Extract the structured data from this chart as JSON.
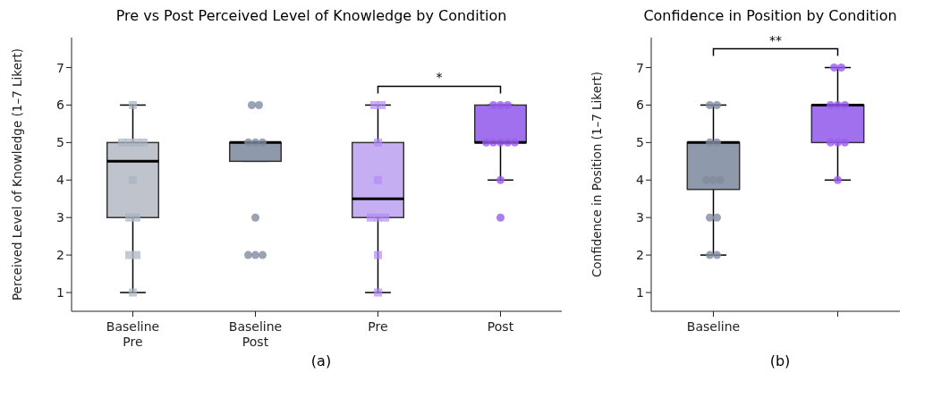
{
  "chart_data": [
    {
      "type": "box",
      "title": "Pre vs Post Perceived Level of Knowledge by Condition",
      "xlabel": "(a)",
      "ylabel": "Perceived Level of Knowledge (1–7 Likert)",
      "categories": [
        "Baseline\nPre",
        "Baseline\nPost",
        "Pre",
        "Post"
      ],
      "ylim": [
        0.5,
        7.8
      ],
      "yticks": [
        1,
        2,
        3,
        4,
        5,
        6,
        7
      ],
      "annotations": [
        "*"
      ],
      "series": [
        {
          "type": "box",
          "colors": [
            "#bfc4cc",
            "#8e9aab",
            "#c6aef2",
            "#a070ee"
          ],
          "boxes": [
            {
              "low": 1,
              "q1": 3,
              "median": 4.5,
              "q3": 5,
              "high": 6
            },
            {
              "low": 4.5,
              "q1": 4.5,
              "median": 5,
              "q3": 5,
              "high": 5
            },
            {
              "low": 1,
              "q1": 3,
              "median": 3.5,
              "q3": 5,
              "high": 6
            },
            {
              "low": 4,
              "q1": 5,
              "median": 5,
              "q3": 6,
              "high": 6
            }
          ]
        },
        {
          "type": "scatter",
          "marker": "square",
          "color": "#aab3c2",
          "x": [
            "Baseline\nPre",
            "Baseline\nPre",
            "Baseline\nPre",
            "Baseline\nPre",
            "Baseline\nPre",
            "Baseline\nPre",
            "Baseline\nPre",
            "Baseline\nPre",
            "Baseline\nPre",
            "Baseline\nPre",
            "Baseline\nPre"
          ],
          "values": [
            6,
            5,
            5,
            5,
            5,
            4,
            3,
            3,
            2,
            2,
            1
          ]
        },
        {
          "type": "scatter",
          "marker": "circle",
          "color": "#7f8ca0",
          "x": [
            "Baseline\nPost",
            "Baseline\nPost",
            "Baseline\nPost",
            "Baseline\nPost",
            "Baseline\nPost",
            "Baseline\nPost",
            "Baseline\nPost",
            "Baseline\nPost",
            "Baseline\nPost"
          ],
          "values": [
            6,
            6,
            5,
            5,
            5,
            3,
            2,
            2,
            2
          ]
        },
        {
          "type": "scatter",
          "marker": "square",
          "color": "#b48cf5",
          "x": [
            "Pre",
            "Pre",
            "Pre",
            "Pre",
            "Pre",
            "Pre",
            "Pre",
            "Pre",
            "Pre"
          ],
          "values": [
            6,
            6,
            5,
            4,
            3,
            3,
            3,
            2,
            1
          ]
        },
        {
          "type": "scatter",
          "marker": "circle",
          "color": "#9a5cf0",
          "x": [
            "Post",
            "Post",
            "Post",
            "Post",
            "Post",
            "Post",
            "Post",
            "Post",
            "Post",
            "Post"
          ],
          "values": [
            6,
            6,
            6,
            5,
            5,
            5,
            5,
            5,
            4,
            3
          ]
        }
      ]
    },
    {
      "type": "box",
      "title": "Confidence in Position by Condition",
      "xlabel": "(b)",
      "ylabel": "Confidence in Position (1–7 Likert)",
      "categories": [
        "Baseline",
        null
      ],
      "ylim": [
        0.5,
        7.8
      ],
      "yticks": [
        1,
        2,
        3,
        4,
        5,
        6,
        7
      ],
      "annotations": [
        "**"
      ],
      "series": [
        {
          "type": "box",
          "colors": [
            "#8e9aab",
            "#a070ee"
          ],
          "boxes": [
            {
              "low": 2,
              "q1": 3.75,
              "median": 5,
              "q3": 5,
              "high": 6
            },
            {
              "low": 4,
              "q1": 5,
              "median": 6,
              "q3": 6,
              "high": 7
            }
          ]
        },
        {
          "type": "scatter",
          "marker": "circle",
          "color": "#7f8ca0",
          "x": [
            "Baseline",
            "Baseline",
            "Baseline",
            "Baseline",
            "Baseline",
            "Baseline",
            "Baseline",
            "Baseline",
            "Baseline",
            "Baseline",
            "Baseline"
          ],
          "values": [
            6,
            6,
            5,
            5,
            4,
            4,
            4,
            3,
            3,
            2,
            2
          ]
        },
        {
          "type": "scatter",
          "marker": "circle",
          "color": "#9a5cf0",
          "x": [
            null,
            null,
            null,
            null,
            null,
            null,
            null,
            null,
            null
          ],
          "values": [
            7,
            7,
            6,
            6,
            6,
            5,
            5,
            5,
            4
          ]
        }
      ]
    }
  ]
}
